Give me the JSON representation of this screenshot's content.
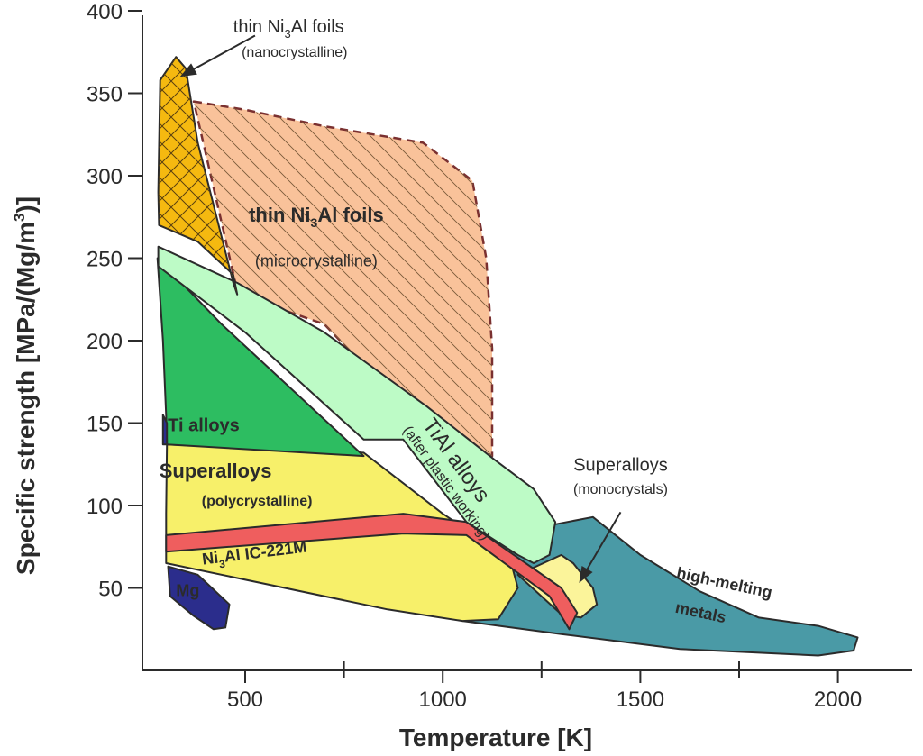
{
  "chart_data": {
    "type": "area",
    "title": "",
    "xlabel": "Temperature [K]",
    "ylabel_main": "Specific strength [MPa/(Mg/m",
    "ylabel_sup": "3",
    "ylabel_end": ")]",
    "xlim": [
      250,
      2200
    ],
    "ylim": [
      0,
      400
    ],
    "x_ticks": [
      500,
      1000,
      1500,
      2000
    ],
    "x_tick_labels": [
      "500",
      "1000",
      "1500",
      "2000"
    ],
    "x_minor_ticks": [
      750,
      1250,
      1750
    ],
    "y_ticks": [
      50,
      100,
      150,
      200,
      250,
      300,
      350,
      400
    ],
    "y_tick_labels": [
      "50",
      "100",
      "150",
      "200",
      "250",
      "300",
      "350",
      "400"
    ],
    "grid": false,
    "regions": [
      {
        "name": "high-melting metals",
        "color": "#4a9aa6",
        "points": [
          [
            1000,
            37
          ],
          [
            1250,
            87
          ],
          [
            1380,
            93
          ],
          [
            1500,
            70
          ],
          [
            1650,
            48
          ],
          [
            1800,
            32
          ],
          [
            1950,
            27
          ],
          [
            2050,
            20
          ],
          [
            2040,
            12
          ],
          [
            1950,
            9
          ],
          [
            1600,
            13
          ],
          [
            1300,
            22
          ],
          [
            1050,
            30
          ]
        ]
      },
      {
        "name": "Superalloys (monocrystals)",
        "color": "#fbf49a",
        "points": [
          [
            1190,
            58
          ],
          [
            1300,
            70
          ],
          [
            1330,
            65
          ],
          [
            1380,
            50
          ],
          [
            1390,
            40
          ],
          [
            1350,
            32
          ],
          [
            1300,
            34
          ]
        ]
      },
      {
        "name": "Superalloys (polycrystalline)",
        "color": "#f7f06a",
        "points": [
          [
            302,
            137
          ],
          [
            800,
            132
          ],
          [
            1000,
            95
          ],
          [
            1170,
            68
          ],
          [
            1190,
            50
          ],
          [
            1140,
            31
          ],
          [
            1050,
            30
          ],
          [
            860,
            37
          ],
          [
            300,
            65
          ],
          [
            300,
            95
          ]
        ]
      },
      {
        "name": "Ni3Al IC-221M",
        "color": "#ef5e5e",
        "points": [
          [
            300,
            82
          ],
          [
            900,
            95
          ],
          [
            1060,
            90
          ],
          [
            1300,
            50
          ],
          [
            1340,
            35
          ],
          [
            1320,
            25
          ],
          [
            1270,
            45
          ],
          [
            1060,
            82
          ],
          [
            900,
            83
          ],
          [
            300,
            72
          ]
        ]
      },
      {
        "name": "Ti alloys",
        "color": "#2dbd61",
        "points": [
          [
            278,
            250
          ],
          [
            440,
            210
          ],
          [
            800,
            130
          ],
          [
            302,
            137
          ],
          [
            300,
            155
          ],
          [
            292,
            200
          ]
        ]
      },
      {
        "name": "thin Ni3Al foils (microcrystalline)",
        "color": "#f9c29a",
        "hatch": "single",
        "dashed": true,
        "points": [
          [
            370,
            345
          ],
          [
            500,
            340
          ],
          [
            700,
            330
          ],
          [
            950,
            320
          ],
          [
            1075,
            297
          ],
          [
            1110,
            250
          ],
          [
            1125,
            195
          ],
          [
            1125,
            130
          ],
          [
            1000,
            135
          ],
          [
            700,
            210
          ],
          [
            482,
            228
          ]
        ]
      },
      {
        "name": "TiAl alloys (after plastic working)",
        "color": "#bdfbc6",
        "points": [
          [
            280,
            257
          ],
          [
            480,
            235
          ],
          [
            700,
            205
          ],
          [
            960,
            160
          ],
          [
            1130,
            128
          ],
          [
            1230,
            110
          ],
          [
            1285,
            90
          ],
          [
            1270,
            70
          ],
          [
            1230,
            65
          ],
          [
            1190,
            70
          ],
          [
            1060,
            90
          ],
          [
            900,
            140
          ],
          [
            800,
            140
          ],
          [
            500,
            205
          ],
          [
            280,
            245
          ]
        ]
      },
      {
        "name": "thin Ni3Al foils (nanocrystalline)",
        "color": "#f5b910",
        "hatch": "cross",
        "points": [
          [
            285,
            358
          ],
          [
            325,
            372
          ],
          [
            350,
            365
          ],
          [
            380,
            320
          ],
          [
            470,
            235
          ],
          [
            480,
            228
          ],
          [
            470,
            240
          ],
          [
            380,
            260
          ],
          [
            282,
            270
          ],
          [
            280,
            290
          ]
        ]
      },
      {
        "name": "Mg",
        "color": "#2b2d8c",
        "points": [
          [
            305,
            63
          ],
          [
            380,
            58
          ],
          [
            460,
            40
          ],
          [
            450,
            26
          ],
          [
            420,
            25
          ],
          [
            370,
            33
          ],
          [
            310,
            45
          ]
        ]
      },
      {
        "name": "small dark sliver",
        "color": "#2b2d8c",
        "points": [
          [
            292,
            155
          ],
          [
            302,
            150
          ],
          [
            302,
            137
          ],
          [
            292,
            137
          ]
        ]
      }
    ],
    "labels": [
      {
        "text": "thin Ni3Al foils",
        "main": "thin Ni",
        "sub": "3",
        "rest": "Al foils",
        "bold": true,
        "size": 22,
        "x": 680,
        "y": 272,
        "anchor": "middle"
      },
      {
        "text": "(microcrystalline)",
        "bold": false,
        "size": 18,
        "x": 680,
        "y": 245,
        "anchor": "middle"
      },
      {
        "text": "Ti alloys",
        "bold": true,
        "size": 20,
        "x": 395,
        "y": 145,
        "anchor": "middle"
      },
      {
        "text": "Superalloys",
        "bold": true,
        "size": 22,
        "x": 425,
        "y": 117,
        "anchor": "middle"
      },
      {
        "text": "(polycrystalline)",
        "bold": true,
        "size": 16,
        "x": 530,
        "y": 100,
        "anchor": "middle"
      },
      {
        "text": "Ni3Al IC-221M",
        "main": "Ni",
        "sub": "3",
        "rest": "Al IC-221M",
        "bold": true,
        "size": 18,
        "x": 525,
        "y": 68,
        "anchor": "middle",
        "rotate": -7
      },
      {
        "text": "Mg",
        "bold": true,
        "size": 18,
        "x": 355,
        "y": 45,
        "anchor": "middle",
        "fill": "#ffffff"
      },
      {
        "text": "TiAl alloys",
        "bold": false,
        "size": 24,
        "x": 1020,
        "y": 125,
        "anchor": "middle",
        "rotate": 54
      },
      {
        "text": "(after plastic working)",
        "bold": false,
        "size": 16,
        "x": 1000,
        "y": 112,
        "anchor": "middle",
        "rotate": 54
      },
      {
        "text": "Superalloys",
        "bold": false,
        "size": 20,
        "x": 1450,
        "y": 121,
        "anchor": "middle"
      },
      {
        "text": "(monocrystals)",
        "bold": false,
        "size": 16,
        "x": 1450,
        "y": 107,
        "anchor": "middle"
      },
      {
        "text": "high-melting",
        "bold": true,
        "size": 18,
        "x": 1710,
        "y": 50,
        "anchor": "middle",
        "rotate": 12
      },
      {
        "text": "metals",
        "bold": true,
        "size": 18,
        "x": 1650,
        "y": 32,
        "anchor": "middle",
        "rotate": 12
      },
      {
        "text": "thin Ni3Al foils",
        "main": "thin Ni",
        "sub": "3",
        "rest": "Al foils",
        "bold": false,
        "size": 20,
        "x": 610,
        "y": 387,
        "anchor": "middle"
      },
      {
        "text": "(nanocrystalline)",
        "bold": false,
        "size": 16,
        "x": 625,
        "y": 372,
        "anchor": "middle"
      }
    ],
    "arrows": [
      {
        "from": [
          525,
          385
        ],
        "to": [
          335,
          360
        ]
      },
      {
        "from": [
          1450,
          96
        ],
        "to": [
          1345,
          53
        ]
      }
    ]
  }
}
